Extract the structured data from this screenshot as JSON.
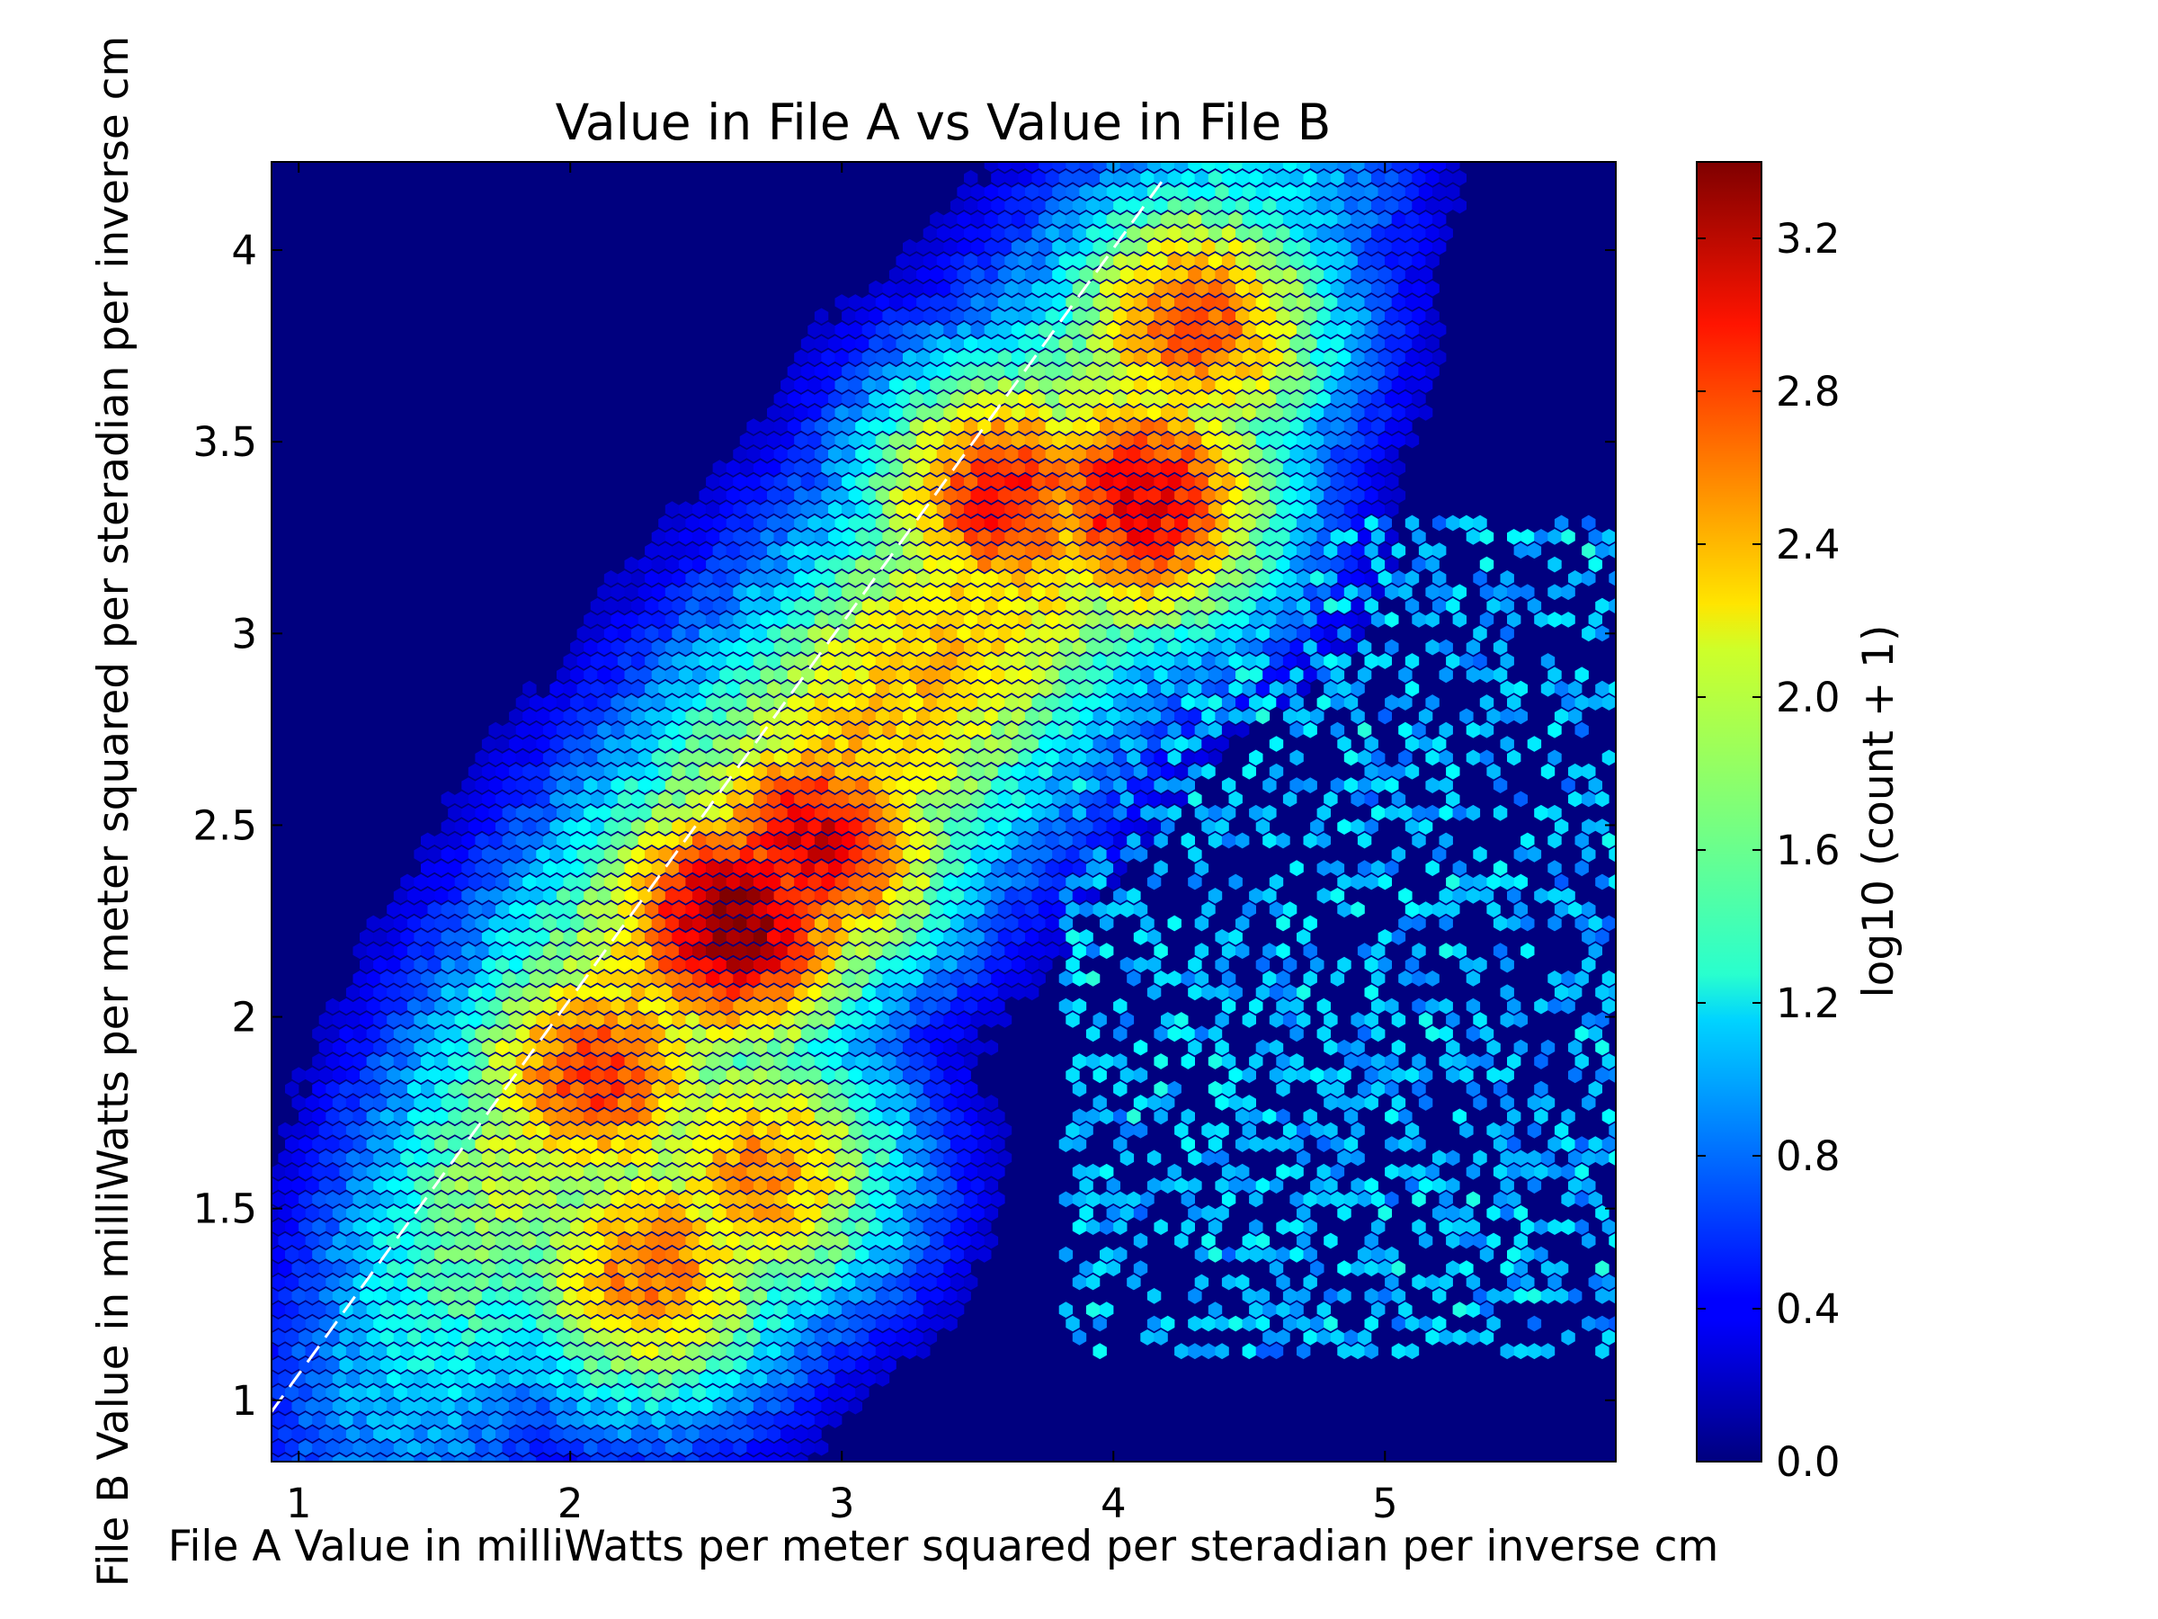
{
  "chart_data": {
    "type": "heatmap",
    "subtype": "hexbin",
    "title": "Value in File A vs Value in File B",
    "xlabel": "File A Value in milliWatts per meter squared per steradian per inverse cm",
    "ylabel": "File B Value in milliWatts per meter squared per steradian per inverse cm",
    "xlim": [
      0.9,
      5.85
    ],
    "ylim": [
      0.84,
      4.23
    ],
    "x_ticks": [
      1,
      2,
      3,
      4,
      5
    ],
    "x_tick_labels": [
      "1",
      "2",
      "3",
      "4",
      "5"
    ],
    "y_ticks": [
      1,
      1.5,
      2,
      2.5,
      3,
      3.5,
      4
    ],
    "y_tick_labels": [
      "1",
      "1.5",
      "2",
      "2.5",
      "3",
      "3.5",
      "4"
    ],
    "colorbar": {
      "label": "log10 (count + 1)",
      "range": [
        0.0,
        3.4
      ],
      "ticks": [
        0.0,
        0.4,
        0.8,
        1.2,
        1.6,
        2.0,
        2.4,
        2.8,
        3.2
      ],
      "tick_labels": [
        "0.0",
        "0.4",
        "0.8",
        "1.2",
        "1.6",
        "2.0",
        "2.4",
        "2.8",
        "3.2"
      ],
      "colormap": "jet"
    },
    "background_color": "#00007f",
    "reference_line": {
      "style": "dashed",
      "color": "#ffffff",
      "x": [
        0.9,
        4.2
      ],
      "y": [
        0.97,
        4.2
      ]
    },
    "density_peaks": [
      {
        "x": 2.6,
        "y": 2.25,
        "log10_count": 3.35
      },
      {
        "x": 2.9,
        "y": 2.45,
        "log10_count": 3.1
      },
      {
        "x": 4.1,
        "y": 3.35,
        "log10_count": 3.05
      },
      {
        "x": 3.6,
        "y": 3.35,
        "log10_count": 2.9
      },
      {
        "x": 2.1,
        "y": 1.85,
        "log10_count": 2.8
      },
      {
        "x": 2.3,
        "y": 1.35,
        "log10_count": 2.6
      },
      {
        "x": 2.7,
        "y": 1.6,
        "log10_count": 2.5
      },
      {
        "x": 4.3,
        "y": 3.8,
        "log10_count": 2.7
      }
    ],
    "grid": false
  }
}
